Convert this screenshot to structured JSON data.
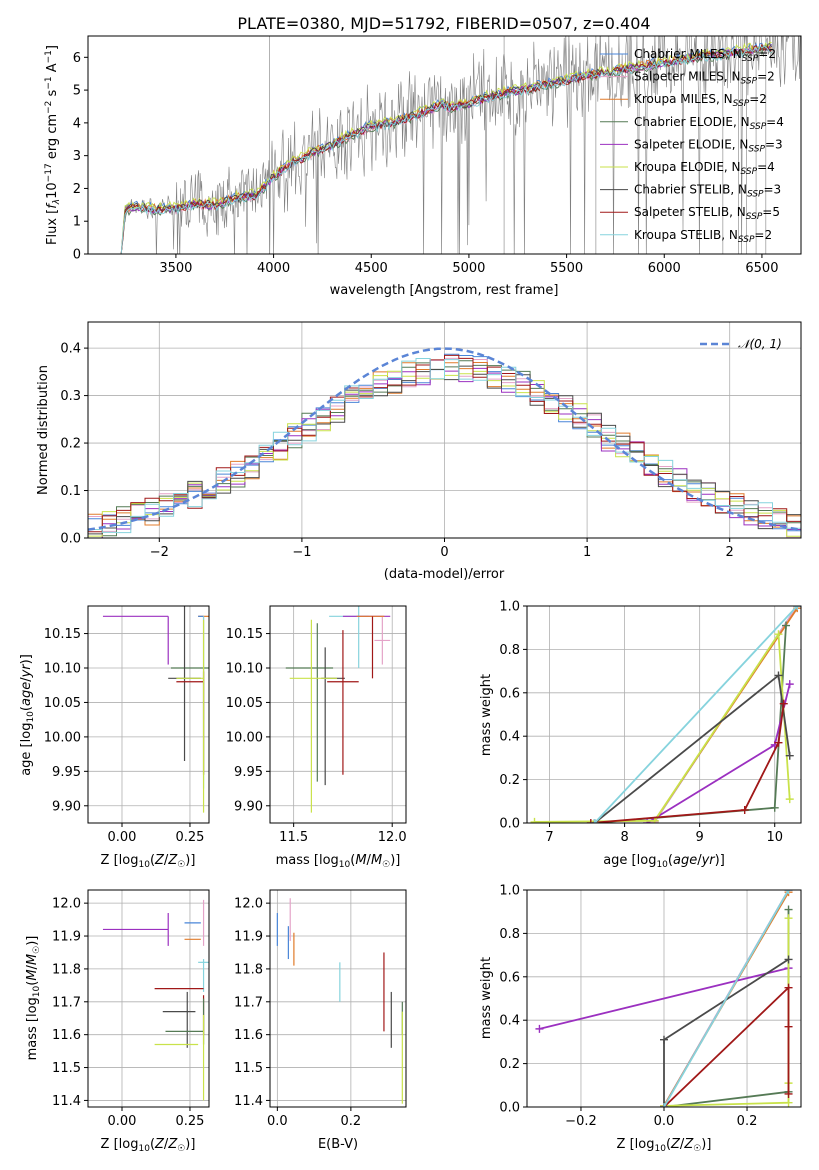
{
  "colors": {
    "Chabrier MILES": "#4a86d8",
    "Salpeter MILES": "#e4a3c8",
    "Kroupa MILES": "#e07b2b",
    "Chabrier ELODIE": "#557a55",
    "Salpeter ELODIE": "#9b30c0",
    "Kroupa ELODIE": "#c9e24a",
    "Chabrier STELIB": "#4a4a4a",
    "Salpeter STELIB": "#a01818",
    "Kroupa STELIB": "#86d3dd",
    "normal": "#5b85d6",
    "data": "#808080"
  },
  "chart_data": [
    {
      "id": "spectrum",
      "type": "line",
      "title": "PLATE=0380, MJD=51792, FIBERID=0507, z=0.404",
      "xlabel": "wavelength [Angstrom, rest frame]",
      "ylabel": "Flux [f_λ 10^-17 erg cm^-2 s^-1 A^-1]",
      "xlim": [
        3050,
        6700
      ],
      "ylim": [
        0,
        6.65
      ],
      "xticks": [
        3500,
        4000,
        4500,
        5000,
        5500,
        6000,
        6500
      ],
      "yticks": [
        0,
        1,
        2,
        3,
        4,
        5,
        6
      ],
      "legend_position": "top-right",
      "legend": [
        {
          "model": "Chabrier MILES",
          "nssp": 2
        },
        {
          "model": "Salpeter MILES",
          "nssp": 2
        },
        {
          "model": "Kroupa MILES",
          "nssp": 2
        },
        {
          "model": "Chabrier ELODIE",
          "nssp": 4
        },
        {
          "model": "Salpeter ELODIE",
          "nssp": 3
        },
        {
          "model": "Kroupa ELODIE",
          "nssp": 4
        },
        {
          "model": "Chabrier STELIB",
          "nssp": 3
        },
        {
          "model": "Salpeter STELIB",
          "nssp": 5
        },
        {
          "model": "Kroupa STELIB",
          "nssp": 2
        }
      ],
      "model_continuum": {
        "x": [
          3220,
          3240,
          3300,
          3400,
          3500,
          3600,
          3700,
          3800,
          3850,
          3900,
          3960,
          4000,
          4100,
          4200,
          4300,
          4400,
          4500,
          4600,
          4700,
          4800,
          4860,
          4900,
          5000,
          5100,
          5200,
          5300,
          5400,
          5500,
          5600,
          5700,
          5800,
          5900,
          6000,
          6100,
          6200,
          6300,
          6400,
          6500,
          6550
        ],
        "y": [
          0,
          1.35,
          1.45,
          1.38,
          1.4,
          1.55,
          1.5,
          1.7,
          1.75,
          1.8,
          2.1,
          2.4,
          2.8,
          3.1,
          3.35,
          3.65,
          3.9,
          4.0,
          4.2,
          4.4,
          4.6,
          4.5,
          4.6,
          4.8,
          4.95,
          5.05,
          5.2,
          5.3,
          5.45,
          5.55,
          5.65,
          5.75,
          5.85,
          5.95,
          6.05,
          6.1,
          6.2,
          6.3,
          6.3
        ]
      }
    },
    {
      "id": "residuals",
      "type": "line",
      "xlabel": "(data-model)/error",
      "ylabel": "Normed distribution",
      "xlim": [
        -2.5,
        2.5
      ],
      "ylim": [
        0,
        0.455
      ],
      "xticks": [
        -2,
        -1,
        0,
        1,
        2
      ],
      "yticks": [
        0,
        0.1,
        0.2,
        0.3,
        0.4
      ],
      "legend_position": "top-right",
      "legend": "N(0,1)",
      "grid": true
    },
    {
      "id": "age_vs_Z",
      "type": "scatter",
      "xlabel": "Z [log10(Z/Z☉)]",
      "ylabel": "age [log10(age/yr)]",
      "xlim": [
        -0.125,
        0.32
      ],
      "ylim": [
        9.875,
        10.19
      ],
      "xticks": [
        0.0,
        0.25
      ],
      "yticks": [
        9.9,
        9.95,
        10.0,
        10.05,
        10.1,
        10.15
      ],
      "grid": true
    },
    {
      "id": "age_vs_mass",
      "type": "scatter",
      "xlabel": "mass [log10(M/M☉)]",
      "xlim": [
        11.38,
        12.07
      ],
      "ylim": [
        9.875,
        10.19
      ],
      "xticks": [
        11.5,
        12.0
      ],
      "yticks": [
        9.9,
        9.95,
        10.0,
        10.05,
        10.1,
        10.15
      ],
      "grid": true
    },
    {
      "id": "weight_vs_age",
      "type": "line",
      "xlabel": "age [log10(age/yr)]",
      "ylabel": "mass weight",
      "xlim": [
        6.7,
        10.35
      ],
      "ylim": [
        0,
        1.0
      ],
      "xticks": [
        7,
        8,
        9,
        10
      ],
      "yticks": [
        0.0,
        0.2,
        0.4,
        0.6,
        0.8,
        1.0
      ],
      "grid": true,
      "series": [
        {
          "model": "Chabrier MILES",
          "points": [
            [
              8.4,
              0.005
            ],
            [
              10.3,
              1.0
            ]
          ]
        },
        {
          "model": "Salpeter MILES",
          "points": [
            [
              8.4,
              0.005
            ],
            [
              10.3,
              1.0
            ]
          ]
        },
        {
          "model": "Kroupa MILES",
          "points": [
            [
              8.4,
              0.01
            ],
            [
              10.3,
              0.99
            ]
          ]
        },
        {
          "model": "Chabrier ELODIE",
          "points": [
            [
              7.6,
              0.0
            ],
            [
              10.0,
              0.07
            ],
            [
              10.15,
              0.91
            ]
          ]
        },
        {
          "model": "Salpeter ELODIE",
          "points": [
            [
              8.3,
              0.0
            ],
            [
              10.0,
              0.36
            ],
            [
              10.2,
              0.64
            ]
          ]
        },
        {
          "model": "Kroupa ELODIE",
          "points": [
            [
              6.8,
              0.005
            ],
            [
              8.4,
              0.01
            ],
            [
              10.05,
              0.87
            ],
            [
              10.2,
              0.11
            ]
          ]
        },
        {
          "model": "Chabrier STELIB",
          "points": [
            [
              7.6,
              0.0
            ],
            [
              10.05,
              0.68
            ],
            [
              10.2,
              0.31
            ]
          ]
        },
        {
          "model": "Salpeter STELIB",
          "points": [
            [
              7.55,
              0.0
            ],
            [
              9.6,
              0.06
            ],
            [
              10.05,
              0.37
            ],
            [
              10.12,
              0.55
            ]
          ]
        },
        {
          "model": "Kroupa STELIB",
          "points": [
            [
              7.6,
              0.0
            ],
            [
              10.3,
              1.0
            ]
          ]
        }
      ]
    },
    {
      "id": "mass_vs_Z",
      "type": "scatter",
      "xlabel": "Z [log10(Z/Z☉)]",
      "ylabel": "mass [log10(M/M☉)]",
      "xlim": [
        -0.125,
        0.32
      ],
      "ylim": [
        11.38,
        12.04
      ],
      "xticks": [
        0.0,
        0.25
      ],
      "yticks": [
        11.4,
        11.5,
        11.6,
        11.7,
        11.8,
        11.9,
        12.0
      ],
      "grid": true
    },
    {
      "id": "mass_vs_ebv",
      "type": "scatter",
      "xlabel": "E(B-V)",
      "xlim": [
        -0.02,
        0.35
      ],
      "ylim": [
        11.38,
        12.04
      ],
      "xticks": [
        0.0,
        0.2
      ],
      "yticks": [
        11.4,
        11.5,
        11.6,
        11.7,
        11.8,
        11.9,
        12.0
      ],
      "grid": true
    },
    {
      "id": "weight_vs_Z",
      "type": "line",
      "xlabel": "Z [log10(Z/Z☉)]",
      "ylabel": "mass weight",
      "xlim": [
        -0.33,
        0.33
      ],
      "ylim": [
        0,
        1.0
      ],
      "xticks": [
        -0.2,
        0.0,
        0.2
      ],
      "yticks": [
        0.0,
        0.2,
        0.4,
        0.6,
        0.8,
        1.0
      ],
      "grid": true,
      "series": [
        {
          "model": "Chabrier MILES",
          "points": [
            [
              0.0,
              0.005
            ],
            [
              0.3,
              1.0
            ]
          ]
        },
        {
          "model": "Salpeter MILES",
          "points": [
            [
              0.0,
              0.005
            ],
            [
              0.3,
              1.0
            ]
          ]
        },
        {
          "model": "Kroupa MILES",
          "points": [
            [
              0.0,
              0.005
            ],
            [
              0.3,
              0.99
            ]
          ]
        },
        {
          "model": "Chabrier ELODIE",
          "points": [
            [
              0.0,
              0.0
            ],
            [
              0.3,
              0.07
            ],
            [
              0.3,
              0.91
            ]
          ]
        },
        {
          "model": "Salpeter ELODIE",
          "points": [
            [
              -0.3,
              0.36
            ],
            [
              0.3,
              0.64
            ]
          ]
        },
        {
          "model": "Kroupa ELODIE",
          "points": [
            [
              0.0,
              0.005
            ],
            [
              0.3,
              0.02
            ],
            [
              0.3,
              0.87
            ],
            [
              0.3,
              0.11
            ]
          ]
        },
        {
          "model": "Chabrier STELIB",
          "points": [
            [
              0.0,
              0.0
            ],
            [
              0.0,
              0.31
            ],
            [
              0.3,
              0.68
            ]
          ]
        },
        {
          "model": "Salpeter STELIB",
          "points": [
            [
              0.0,
              0.0
            ],
            [
              0.3,
              0.55
            ],
            [
              0.3,
              0.06
            ],
            [
              0.3,
              0.37
            ]
          ]
        },
        {
          "model": "Kroupa STELIB",
          "points": [
            [
              0.0,
              0.0
            ],
            [
              0.3,
              1.0
            ]
          ]
        }
      ]
    }
  ]
}
